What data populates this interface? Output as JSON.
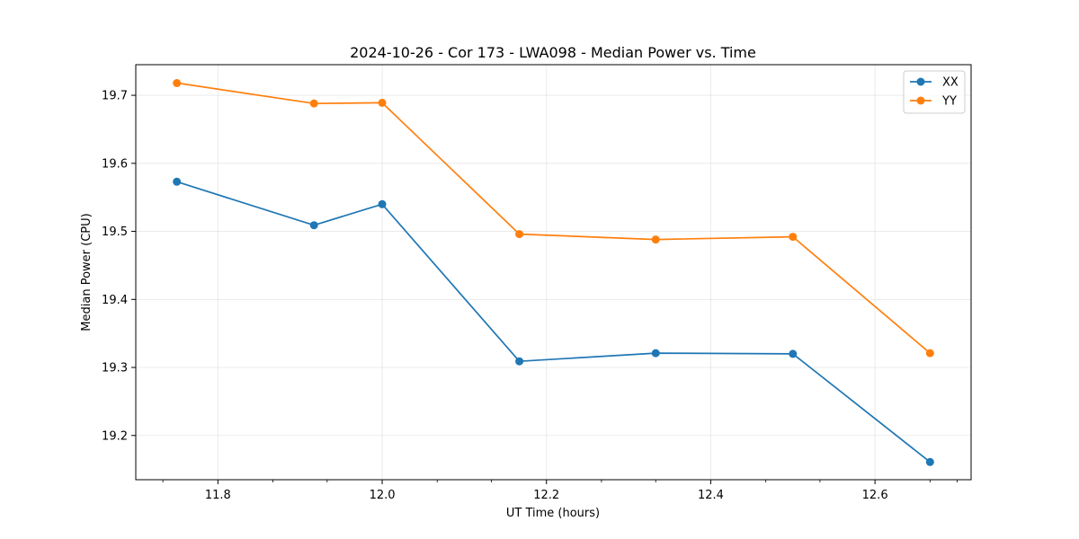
{
  "chart_data": {
    "type": "line",
    "title": "2024-10-26 - Cor 173 - LWA098 - Median Power vs. Time",
    "xlabel": "UT Time (hours)",
    "ylabel": "Median Power (CPU)",
    "xlim": [
      11.7,
      12.717
    ],
    "ylim": [
      19.135,
      19.745
    ],
    "xticks": [
      11.8,
      12.0,
      12.2,
      12.4,
      12.6
    ],
    "xtick_labels": [
      "11.8",
      "12.0",
      "12.2",
      "12.4",
      "12.6"
    ],
    "xminor_ticks": [
      11.733,
      11.867,
      11.933,
      12.067,
      12.133,
      12.267,
      12.333,
      12.467,
      12.533,
      12.667,
      12.7
    ],
    "yticks": [
      19.2,
      19.3,
      19.4,
      19.5,
      19.6,
      19.7
    ],
    "ytick_labels": [
      "19.2",
      "19.3",
      "19.4",
      "19.5",
      "19.6",
      "19.7"
    ],
    "grid": true,
    "legend_position": "top-right",
    "x": [
      11.75,
      11.917,
      12.0,
      12.167,
      12.333,
      12.5,
      12.667
    ],
    "series": [
      {
        "name": "XX",
        "color": "#1f77b4",
        "values": [
          19.573,
          19.509,
          19.54,
          19.309,
          19.321,
          19.32,
          19.161
        ]
      },
      {
        "name": "YY",
        "color": "#ff7f0e",
        "values": [
          19.718,
          19.688,
          19.689,
          19.496,
          19.488,
          19.492,
          19.321
        ]
      }
    ]
  }
}
